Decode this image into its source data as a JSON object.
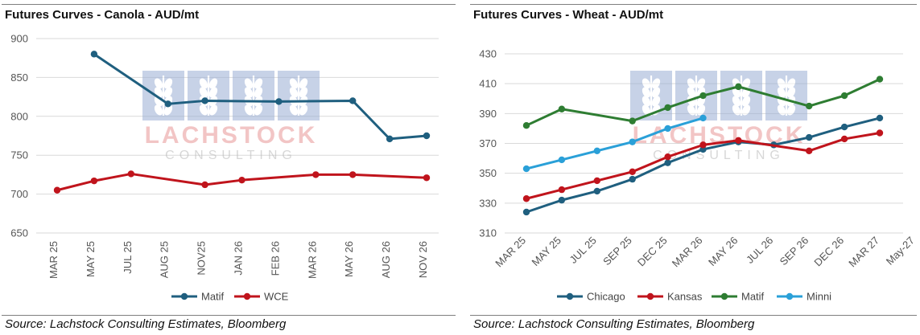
{
  "colors": {
    "matif_canola": "#1f5f7f",
    "wce": "#c0141c",
    "chicago": "#1f5f7f",
    "kansas": "#c0141c",
    "matif_wheat": "#2e7d32",
    "minni": "#2aa0d8",
    "grid": "#d9d9d9",
    "watermark_blue": "#9aaed4",
    "watermark_red": "#e89696"
  },
  "watermark": {
    "brand": "LACHSTOCK",
    "tag": "CONSULTING"
  },
  "chart_data": [
    {
      "type": "line",
      "title": "Futures Curves - Canola - AUD/mt",
      "source": "Source: Lachstock Consulting Estimates, Bloomberg",
      "categories": [
        "MAR 25",
        "MAY 25",
        "JUL 25",
        "AUG 25",
        "NOV25",
        "JAN 26",
        "FEB 26",
        "MAR 26",
        "MAY 26",
        "AUG 26",
        "NOV 26"
      ],
      "ylim": [
        650,
        900
      ],
      "yticks": [
        650,
        700,
        750,
        800,
        850,
        900
      ],
      "grid": true,
      "legend": "bottom",
      "series": [
        {
          "name": "Matif",
          "color": "#1f5f7f",
          "values": [
            null,
            880,
            null,
            816,
            820,
            null,
            819,
            null,
            820,
            771,
            775
          ]
        },
        {
          "name": "WCE",
          "color": "#c0141c",
          "values": [
            705,
            717,
            726,
            null,
            712,
            718,
            null,
            725,
            725,
            null,
            721
          ]
        }
      ]
    },
    {
      "type": "line",
      "title": "Futures Curves - Wheat - AUD/mt",
      "source": "Source: Lachstock Consulting Estimates, Bloomberg",
      "categories": [
        "MAR 25",
        "MAY 25",
        "JUL 25",
        "SEP 25",
        "DEC 25",
        "MAR 26",
        "MAY 26",
        "JUL 26",
        "SEP 26",
        "DEC 26",
        "MAR 27",
        "May-27"
      ],
      "ylim": [
        310,
        430
      ],
      "yticks": [
        310,
        330,
        350,
        370,
        390,
        410,
        430
      ],
      "grid": true,
      "legend": "bottom",
      "series": [
        {
          "name": "Chicago",
          "color": "#1f5f7f",
          "values": [
            324,
            332,
            338,
            346,
            357,
            366,
            371,
            369,
            374,
            381,
            387,
            null
          ]
        },
        {
          "name": "Kansas",
          "color": "#c0141c",
          "values": [
            333,
            339,
            345,
            351,
            361,
            369,
            372,
            null,
            365,
            373,
            377,
            null
          ]
        },
        {
          "name": "Matif",
          "color": "#2e7d32",
          "values": [
            382,
            393,
            null,
            385,
            394,
            402,
            408,
            null,
            395,
            402,
            413,
            null
          ]
        },
        {
          "name": "Minni",
          "color": "#2aa0d8",
          "values": [
            353,
            359,
            365,
            371,
            380,
            387,
            null,
            null,
            null,
            null,
            null,
            null
          ]
        }
      ]
    }
  ]
}
